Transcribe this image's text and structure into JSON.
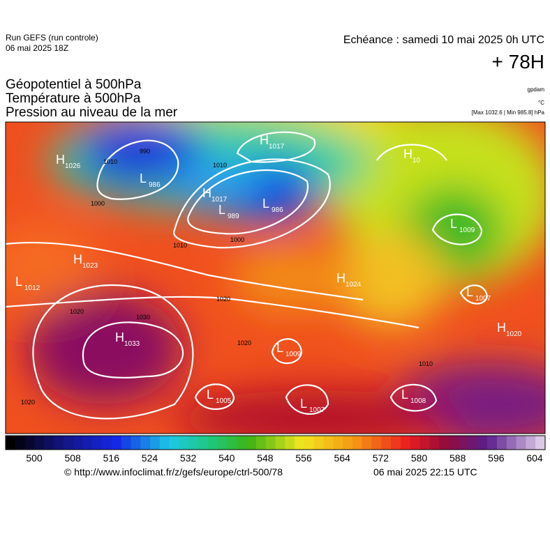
{
  "header": {
    "run": "Run GEFS (run controle)",
    "run_date": "06 mai 2025 18Z",
    "valid": "Echéance : samedi 10 mai 2025 0h UTC",
    "lead": "+ 78H",
    "titles": [
      "Géopotentiel à 500hPa",
      "Température à 500hPa",
      "Pression au niveau de la mer"
    ],
    "units": [
      "gpdam",
      "°C",
      "[Max 1032.6 | Min 985.8] hPa"
    ]
  },
  "centers": [
    {
      "letter": "H",
      "value": 1026
    },
    {
      "letter": "L",
      "value": 986
    },
    {
      "letter": "H",
      "value": 1017
    },
    {
      "letter": "H",
      "value": 1017
    },
    {
      "letter": "L",
      "value": 989
    },
    {
      "letter": "L",
      "value": 986
    },
    {
      "letter": "H",
      "value": 10
    },
    {
      "letter": "L",
      "value": 1009
    },
    {
      "letter": "H",
      "value": 1023
    },
    {
      "letter": "L",
      "value": 1012
    },
    {
      "letter": "H",
      "value": 1024
    },
    {
      "letter": "L",
      "value": 1007
    },
    {
      "letter": "H",
      "value": 1020
    },
    {
      "letter": "H",
      "value": 1033
    },
    {
      "letter": "L",
      "value": 1009
    },
    {
      "letter": "L",
      "value": 1005
    },
    {
      "letter": "L",
      "value": 1007
    },
    {
      "letter": "L",
      "value": 1008
    }
  ],
  "isobar_labels": [
    1010,
    1000,
    990,
    1010,
    1010,
    1000,
    1020,
    1020,
    1030,
    1020,
    1020,
    1010
  ],
  "colorbar_ticks": [
    500,
    508,
    516,
    524,
    532,
    540,
    548,
    556,
    564,
    572,
    580,
    588,
    596,
    604
  ],
  "footer": {
    "source": "© http://www.infoclimat.fr/z/gefs/europe/ctrl-500/78",
    "issued": "06 mai 2025 22:15 UTC"
  }
}
